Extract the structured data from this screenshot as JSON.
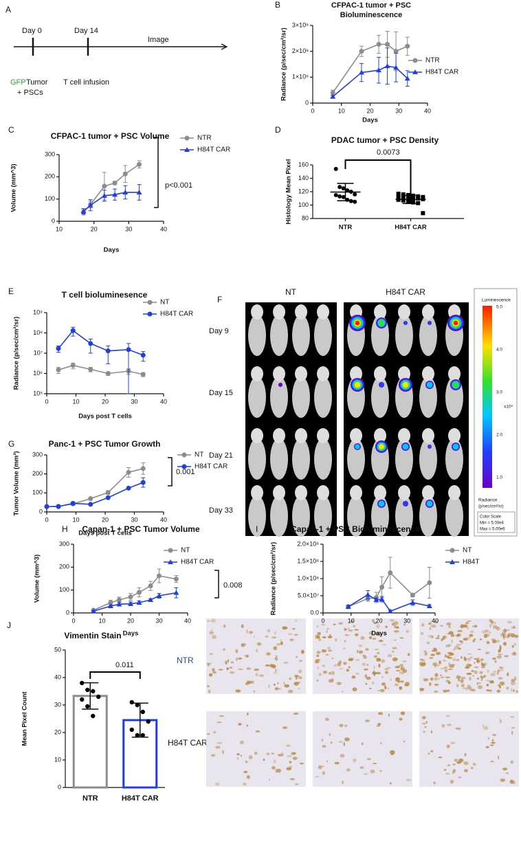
{
  "panel_a": {
    "letter": "A",
    "day0": "Day 0",
    "day14": "Day 14",
    "image": "Image",
    "gfp": "GFP",
    "tumor": "Tumor",
    "pscs": "+ PSCs",
    "infusion": "T cell infusion"
  },
  "chart_data": [
    {
      "panel": "B",
      "type": "line",
      "title": [
        "CFPAC-1 tumor + PSC",
        "Bioluminescence"
      ],
      "x_label": "Days",
      "y_label": "Radiance (p/sec/cm²/sr)",
      "x": [
        7,
        17,
        23,
        26,
        29,
        33
      ],
      "xlim": [
        0,
        40
      ],
      "xticks": [
        0,
        10,
        20,
        30,
        40
      ],
      "ylim": [
        0,
        300000000
      ],
      "yticks": [
        0,
        {
          "value": 100000000,
          "label": "1×10⁸"
        },
        {
          "value": 200000000,
          "label": "2×10⁸"
        },
        {
          "value": 300000000,
          "label": "3×10⁸"
        }
      ],
      "series": [
        {
          "name": "NTR",
          "color": "#8c8c8c",
          "marker": "circle",
          "values": [
            40000000,
            200000000,
            227000000,
            227000000,
            200000000,
            220000000
          ],
          "errors": [
            10000000,
            20000000,
            35000000,
            50000000,
            75000000,
            35000000
          ]
        },
        {
          "name": "H84T CAR",
          "color": "#1f3fe0",
          "marker": "triangle",
          "values": [
            25000000,
            118000000,
            127000000,
            143000000,
            137000000,
            95000000
          ],
          "errors": [
            5000000,
            35000000,
            50000000,
            70000000,
            55000000,
            30000000
          ]
        }
      ]
    },
    {
      "panel": "C",
      "type": "line",
      "title": "CFPAC-1 tumor + PSC Volume",
      "x_label": "Days",
      "y_label": "Volume (mm^3)",
      "annotation": "p<0.001",
      "x": [
        17,
        19,
        23,
        26,
        29,
        33
      ],
      "xlim": [
        10,
        40
      ],
      "xticks": [
        10,
        20,
        30,
        40
      ],
      "ylim": [
        0,
        300
      ],
      "yticks": [
        0,
        100,
        200,
        300
      ],
      "series": [
        {
          "name": "NTR",
          "color": "#8c8c8c",
          "marker": "circle",
          "values": [
            40,
            75,
            158,
            172,
            213,
            256
          ],
          "errors": [
            12,
            15,
            62,
            8,
            38,
            16
          ]
        },
        {
          "name": "H84T CAR",
          "color": "#1f3fe0",
          "marker": "triangle",
          "values": [
            45,
            72,
            115,
            120,
            130,
            130
          ],
          "errors": [
            12,
            25,
            25,
            25,
            30,
            35
          ]
        }
      ]
    },
    {
      "panel": "D",
      "type": "dot",
      "title": "PDAC tumor + PSC Density",
      "y_label": "Histology Mean Pixel",
      "annotation": "0.0073",
      "categories": [
        "NTR",
        "H84T CAR"
      ],
      "markers": [
        "circle",
        "square"
      ],
      "values": [
        [
          154,
          127,
          125,
          122,
          120,
          116,
          115,
          113,
          112,
          108,
          106,
          105
        ],
        [
          117,
          116,
          115,
          114,
          113,
          112,
          112,
          111,
          111,
          110,
          110,
          109,
          108,
          107,
          105,
          104,
          103,
          88
        ]
      ],
      "means": [
        119.5,
        108.5
      ],
      "sds": [
        13,
        6
      ],
      "ylim": [
        80,
        160
      ],
      "yticks": [
        80,
        100,
        120,
        140,
        160
      ]
    },
    {
      "panel": "E",
      "type": "line",
      "title": "T cell bioluminesence",
      "x_label": "Days post T cells",
      "y_label": "Radiance (p/sec/cm²/sr)",
      "yscale": "log",
      "x": [
        4,
        9,
        15,
        21,
        28,
        33
      ],
      "xlim": [
        0,
        40
      ],
      "xticks": [
        0,
        10,
        20,
        30,
        40
      ],
      "ylim": [
        100000,
        1000000000
      ],
      "yticks": [
        {
          "value": 100000,
          "label": "10⁵"
        },
        {
          "value": 1000000,
          "label": "10⁶"
        },
        {
          "value": 10000000,
          "label": "10⁷"
        },
        {
          "value": 100000000,
          "label": "10⁸"
        },
        {
          "value": 1000000000,
          "label": "10⁹"
        }
      ],
      "series": [
        {
          "name": "NT",
          "color": "#8c8c8c",
          "marker": "circle",
          "values": [
            1500000,
            2500000,
            1600000,
            1000000,
            1300000,
            900000
          ],
          "errors": [
            500000,
            800000,
            400000,
            200000,
            400000,
            200000
          ]
        },
        {
          "name": "H84T CAR",
          "color": "#1f3fe0",
          "marker": "circle",
          "values": [
            17000000,
            130000000,
            30000000,
            13000000,
            15000000,
            8000000
          ],
          "errors": [
            6000000,
            60000000,
            20000000,
            10000000,
            15000000,
            4000000
          ]
        }
      ]
    },
    {
      "panel": "G",
      "type": "line",
      "title": "Panc-1 + PSC Tumor Growth",
      "x_label": "Days post T cells",
      "y_label": "Tumor Volume (mm³)",
      "annotation": "0.001",
      "x": [
        0,
        4,
        9,
        15,
        21,
        28,
        33
      ],
      "xlim": [
        0,
        40
      ],
      "xticks": [
        0,
        10,
        20,
        30,
        40
      ],
      "ylim": [
        0,
        300
      ],
      "yticks": [
        0,
        100,
        200,
        300
      ],
      "series": [
        {
          "name": "NT",
          "color": "#8c8c8c",
          "marker": "circle",
          "values": [
            28,
            30,
            42,
            70,
            102,
            208,
            228
          ],
          "errors": [
            3,
            4,
            5,
            6,
            10,
            25,
            30
          ]
        },
        {
          "name": "H84T CAR",
          "color": "#1f3fe0",
          "marker": "circle",
          "values": [
            28,
            28,
            45,
            40,
            75,
            125,
            155
          ],
          "errors": [
            3,
            3,
            8,
            4,
            5,
            5,
            25
          ]
        }
      ]
    },
    {
      "panel": "H",
      "type": "line",
      "title": "Capan-1 + PSC Tumor Volume",
      "x_label": "Days",
      "y_label": "Volume (mm^3)",
      "annotation": "0.008",
      "x": [
        7,
        13,
        16,
        20,
        23,
        27,
        30,
        36
      ],
      "xlim": [
        0,
        40
      ],
      "xticks": [
        0,
        10,
        20,
        30,
        40
      ],
      "ylim": [
        0,
        300
      ],
      "yticks": [
        0,
        100,
        200,
        300
      ],
      "series": [
        {
          "name": "NT",
          "color": "#8c8c8c",
          "marker": "circle",
          "values": [
            12,
            45,
            57,
            70,
            90,
            118,
            162,
            148
          ],
          "errors": [
            3,
            10,
            12,
            15,
            20,
            20,
            30,
            15
          ]
        },
        {
          "name": "H84T CAR",
          "color": "#1f3fe0",
          "marker": "triangle",
          "values": [
            8,
            30,
            38,
            40,
            45,
            57,
            75,
            88
          ],
          "errors": [
            3,
            5,
            8,
            8,
            8,
            5,
            10,
            22
          ]
        }
      ]
    },
    {
      "panel": "I",
      "type": "line",
      "title": "Capan-1 + PSC Bioluminescence",
      "x_label": "Days",
      "y_label": "Radiance (p/sec/cm²/sr)",
      "x": [
        9,
        16,
        19,
        21,
        24,
        32,
        38
      ],
      "xlim": [
        0,
        40
      ],
      "xticks": [
        0,
        10,
        20,
        30,
        40
      ],
      "ylim": [
        0,
        200000000
      ],
      "yticks": [
        {
          "value": 0,
          "label": "0.0"
        },
        {
          "value": 50000000,
          "label": "5.0×10⁷"
        },
        {
          "value": 100000000,
          "label": "1.0×10⁸"
        },
        {
          "value": 150000000,
          "label": "1.5×10⁸"
        },
        {
          "value": 200000000,
          "label": "2.0×10⁸"
        }
      ],
      "series": [
        {
          "name": "NT",
          "color": "#8c8c8c",
          "marker": "circle",
          "values": [
            18000000,
            42000000,
            45000000,
            75000000,
            117000000,
            52000000,
            88000000
          ],
          "errors": [
            5000000,
            8000000,
            15000000,
            30000000,
            45000000,
            5000000,
            45000000
          ]
        },
        {
          "name": "H84T",
          "color": "#1f3fe0",
          "marker": "triangle",
          "values": [
            18000000,
            53000000,
            38000000,
            40000000,
            5000000,
            30000000,
            20000000
          ],
          "errors": [
            5000000,
            12000000,
            5000000,
            8000000,
            3000000,
            8000000,
            4000000
          ]
        }
      ]
    },
    {
      "panel": "J",
      "type": "bar",
      "title": "Vimentin Stain",
      "y_label": "Mean Pixel Count",
      "annotation": "0.011",
      "categories": [
        "NTR",
        "H84T CAR"
      ],
      "colors": [
        "#8c8c8c",
        "#1f3fe0"
      ],
      "values": [
        33.3,
        24.5
      ],
      "errors": [
        4.8,
        6.2
      ],
      "points": [
        [
          38,
          35.5,
          35,
          33,
          32,
          29.5,
          26
        ],
        [
          31,
          30,
          27.5,
          24,
          21,
          19,
          19
        ]
      ],
      "ylim": [
        0,
        50
      ],
      "yticks": [
        0,
        10,
        20,
        30,
        40,
        50
      ]
    }
  ],
  "panel_f": {
    "letter": "F",
    "columns": [
      "NT",
      "H84T CAR"
    ],
    "rows": [
      "Day 9",
      "Day 15",
      "Day 21",
      "Day 33"
    ],
    "colorbar": {
      "title": "Luminescence",
      "ticks": [
        "5.0",
        "4.0",
        "3.0",
        "2.0",
        "1.0"
      ],
      "unit": "x10⁶",
      "radiance": "Radiance",
      "radiance_unit": "(p/sec/cm²/sr)",
      "scale_title": "Color Scale",
      "min": "Min = 5.00e4",
      "max": "Max = 5.00e6"
    }
  },
  "panel_j_images": {
    "rows": [
      "NTR",
      "H84T CAR"
    ]
  }
}
